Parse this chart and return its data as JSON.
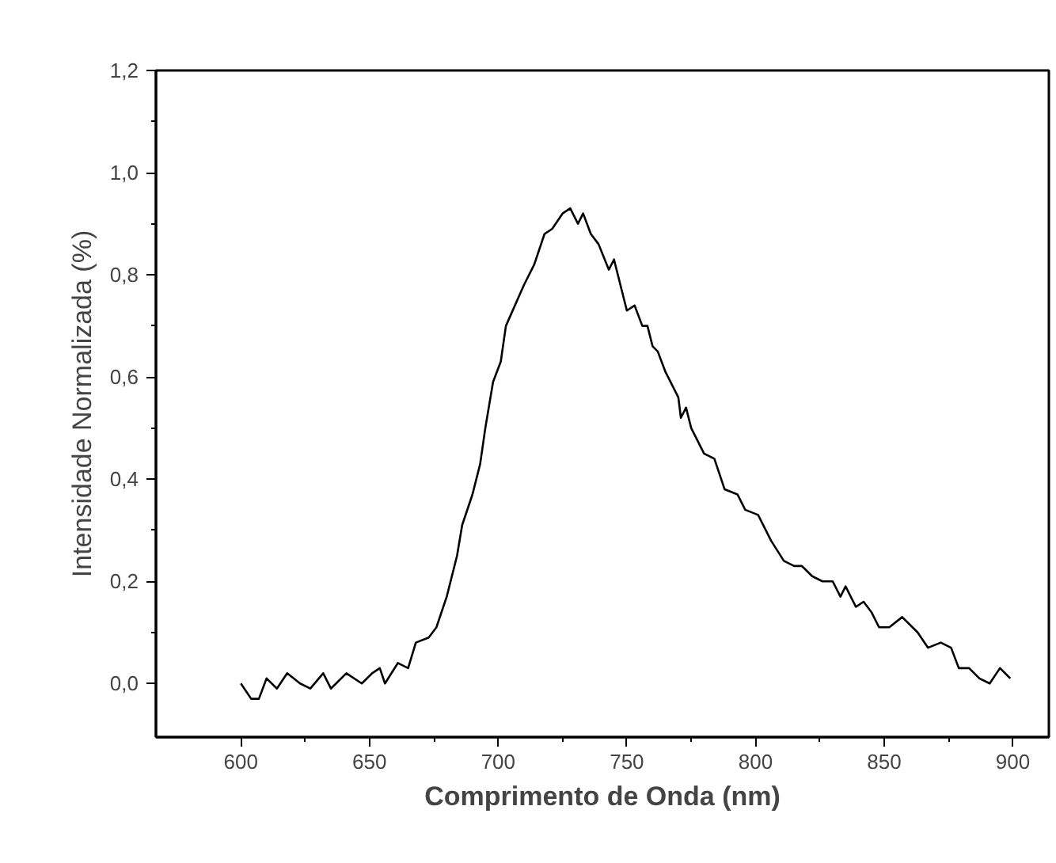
{
  "chart_data": {
    "type": "line",
    "xlabel": "Comprimento de Onda (nm)",
    "ylabel": "Intensidade Normalizada (%)",
    "xlim": [
      567,
      914
    ],
    "ylim": [
      -0.105,
      1.2
    ],
    "xticks": [
      600,
      {
        "value": 625,
        "label": null
      },
      650,
      {
        "value": 675,
        "label": null
      },
      700,
      {
        "value": 725,
        "label": null
      },
      750,
      {
        "value": 775,
        "label": null
      },
      800,
      {
        "value": 825,
        "label": null
      },
      850,
      {
        "value": 875,
        "label": null
      },
      900
    ],
    "yticks": [
      {
        "value": 0,
        "label": "0,0"
      },
      {
        "value": 0.1,
        "label": null
      },
      {
        "value": 0.2,
        "label": "0,2"
      },
      {
        "value": 0.3,
        "label": null
      },
      {
        "value": 0.4,
        "label": "0,4"
      },
      {
        "value": 0.5,
        "label": null
      },
      {
        "value": 0.6,
        "label": "0,6"
      },
      {
        "value": 0.7,
        "label": null
      },
      {
        "value": 0.8,
        "label": "0,8"
      },
      {
        "value": 0.9,
        "label": null
      },
      {
        "value": 1.0,
        "label": "1,0"
      },
      {
        "value": 1.1,
        "label": null
      },
      {
        "value": 1.2,
        "label": "1,2"
      }
    ],
    "grid": false,
    "marker": "none",
    "line_style": "solid",
    "series": [
      {
        "color": "#000000",
        "x": [
          600,
          604,
          607,
          610,
          614,
          618,
          623,
          627,
          632,
          635,
          641,
          647,
          651,
          654,
          656,
          661,
          665,
          668,
          673,
          676,
          680,
          684,
          686,
          690,
          693,
          695,
          698,
          701,
          703,
          710,
          714,
          718,
          721,
          725,
          728,
          731,
          733,
          736,
          739,
          743,
          745,
          750,
          753,
          756,
          758,
          760,
          762,
          765,
          770,
          771,
          773,
          775,
          780,
          784,
          788,
          793,
          796,
          801,
          806,
          811,
          815,
          818,
          822,
          826,
          830,
          833,
          835,
          839,
          842,
          845,
          848,
          852,
          857,
          863,
          867,
          872,
          876,
          879,
          883,
          887,
          891,
          895,
          899
        ],
        "values": [
          0.0,
          -0.03,
          -0.03,
          0.01,
          -0.01,
          0.02,
          0.0,
          -0.01,
          0.02,
          -0.01,
          0.02,
          0.0,
          0.02,
          0.03,
          0.0,
          0.04,
          0.03,
          0.08,
          0.09,
          0.11,
          0.17,
          0.25,
          0.31,
          0.37,
          0.43,
          0.5,
          0.59,
          0.63,
          0.7,
          0.78,
          0.82,
          0.88,
          0.89,
          0.92,
          0.93,
          0.9,
          0.92,
          0.88,
          0.86,
          0.81,
          0.83,
          0.73,
          0.74,
          0.7,
          0.7,
          0.66,
          0.65,
          0.61,
          0.56,
          0.52,
          0.54,
          0.5,
          0.45,
          0.44,
          0.38,
          0.37,
          0.34,
          0.33,
          0.28,
          0.24,
          0.23,
          0.23,
          0.21,
          0.2,
          0.2,
          0.17,
          0.19,
          0.15,
          0.16,
          0.14,
          0.11,
          0.11,
          0.13,
          0.1,
          0.07,
          0.08,
          0.07,
          0.03,
          0.03,
          0.01,
          0.0,
          0.03,
          0.01
        ]
      }
    ]
  }
}
